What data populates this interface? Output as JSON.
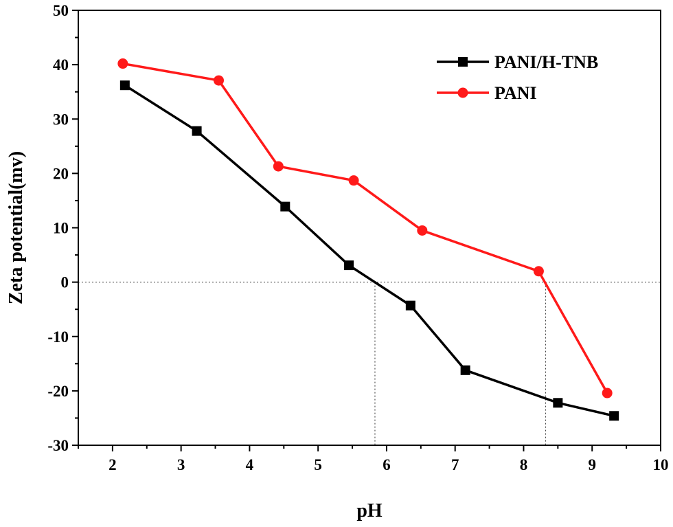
{
  "chart_data": {
    "type": "line",
    "xlabel": "pH",
    "ylabel": "Zeta potential(mv)",
    "xlim": [
      1.5,
      10
    ],
    "ylim": [
      -30,
      50
    ],
    "x_ticks": [
      2,
      3,
      4,
      5,
      6,
      7,
      8,
      9,
      10
    ],
    "y_ticks": [
      -30,
      -20,
      -10,
      0,
      10,
      20,
      30,
      40,
      50
    ],
    "grid": false,
    "legend_position": "top-right",
    "series": [
      {
        "name": "PANI/H-TNB",
        "color": "#000000",
        "marker": "square",
        "x": [
          2.18,
          3.23,
          4.52,
          5.45,
          6.35,
          7.15,
          8.5,
          9.32
        ],
        "y": [
          36.2,
          27.8,
          13.9,
          3.1,
          -4.3,
          -16.2,
          -22.2,
          -24.6
        ]
      },
      {
        "name": "PANI",
        "color": "#ff1a1a",
        "marker": "circle",
        "x": [
          2.15,
          3.55,
          4.42,
          5.52,
          6.52,
          8.22,
          9.22
        ],
        "y": [
          40.2,
          37.1,
          21.3,
          18.7,
          9.5,
          2.0,
          -20.4
        ]
      }
    ],
    "reference_lines": {
      "y": 0,
      "x": [
        5.83,
        8.32
      ]
    }
  }
}
